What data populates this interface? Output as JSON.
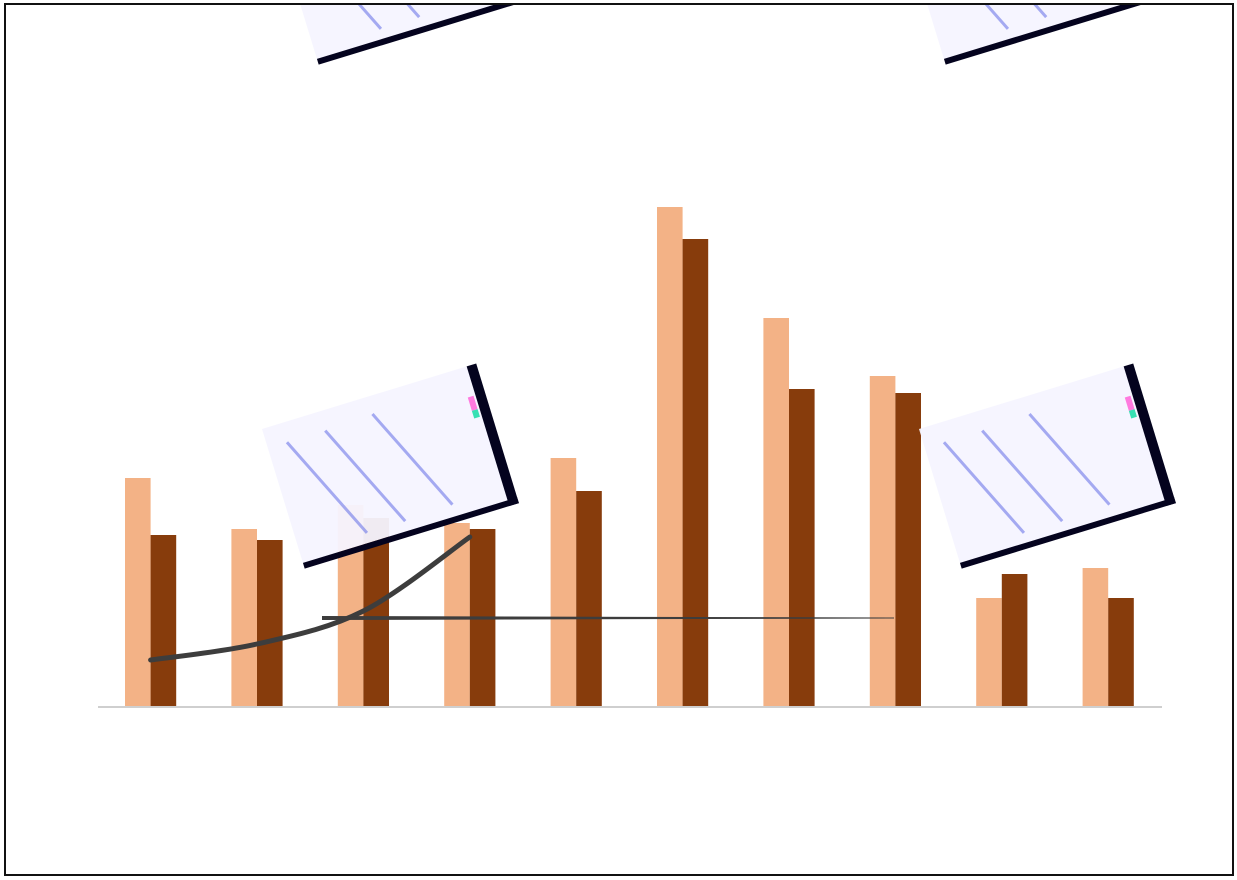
{
  "chart_data": {
    "type": "bar",
    "categories": [
      "",
      "",
      "",
      "",
      "",
      "",
      "",
      "",
      "",
      ""
    ],
    "ylim": [
      0,
      100
    ],
    "grid": false,
    "series": [
      {
        "color": "#f3b286",
        "values": [
          45.6,
          35.4,
          40.2,
          36.6,
          49.6,
          99.8,
          77.6,
          66.0,
          21.6,
          27.6
        ]
      },
      {
        "color": "#873c0c",
        "values": [
          34.2,
          33.2,
          37.6,
          35.4,
          43.0,
          93.4,
          63.4,
          62.6,
          26.4,
          21.6
        ]
      }
    ],
    "overlay_line": {
      "color": "#3d3d3d",
      "values": [
        9.2,
        12.4,
        19.0,
        33.8
      ]
    },
    "reference_line": {
      "color": "#3d3d3d",
      "value": 17.6
    }
  },
  "watermark": {
    "color": "#6e78e8",
    "panel_color": "#f6f4ff",
    "edge_color": "#04031e"
  }
}
